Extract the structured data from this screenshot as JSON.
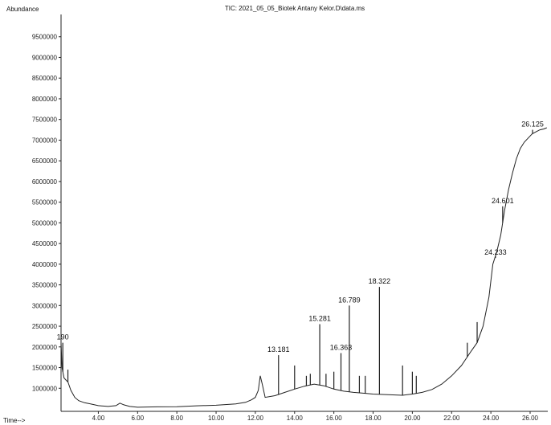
{
  "chart_data": {
    "type": "line",
    "title": "TIC: 2021_05_05_Biotek Antany Kelor.D\\data.ms",
    "ylabel": "Abundance",
    "xlabel": "Time-->",
    "xlim": [
      2.1,
      26.9
    ],
    "ylim": [
      500000,
      10000000
    ],
    "xticks": [
      "4.00",
      "6.00",
      "8.00",
      "10.00",
      "12.00",
      "14.00",
      "16.00",
      "18.00",
      "20.00",
      "22.00",
      "24.00",
      "26.00"
    ],
    "yticks": [
      "1000000",
      "1500000",
      "2000000",
      "2500000",
      "3000000",
      "3500000",
      "4000000",
      "4500000",
      "5000000",
      "5500000",
      "6000000",
      "6500000",
      "7000000",
      "7500000",
      "8000000",
      "8500000",
      "9000000",
      "9500000"
    ],
    "grid": false,
    "baseline": [
      [
        2.1,
        2100000
      ],
      [
        2.15,
        1500000
      ],
      [
        2.25,
        1250000
      ],
      [
        2.35,
        1200000
      ],
      [
        2.45,
        1150000
      ],
      [
        2.6,
        950000
      ],
      [
        2.8,
        780000
      ],
      [
        3.0,
        700000
      ],
      [
        3.3,
        650000
      ],
      [
        3.6,
        620000
      ],
      [
        4.0,
        580000
      ],
      [
        4.5,
        560000
      ],
      [
        4.9,
        580000
      ],
      [
        5.1,
        640000
      ],
      [
        5.3,
        600000
      ],
      [
        5.6,
        560000
      ],
      [
        6.0,
        540000
      ],
      [
        7.0,
        550000
      ],
      [
        8.0,
        555000
      ],
      [
        9.0,
        575000
      ],
      [
        10.0,
        590000
      ],
      [
        11.0,
        620000
      ],
      [
        11.5,
        660000
      ],
      [
        11.8,
        720000
      ],
      [
        12.0,
        780000
      ],
      [
        12.15,
        950000
      ],
      [
        12.25,
        1300000
      ],
      [
        12.35,
        1100000
      ],
      [
        12.5,
        780000
      ],
      [
        13.0,
        820000
      ],
      [
        13.5,
        900000
      ],
      [
        14.0,
        980000
      ],
      [
        14.5,
        1050000
      ],
      [
        15.0,
        1100000
      ],
      [
        15.5,
        1060000
      ],
      [
        16.0,
        980000
      ],
      [
        16.5,
        930000
      ],
      [
        17.0,
        900000
      ],
      [
        17.5,
        880000
      ],
      [
        18.0,
        860000
      ],
      [
        18.5,
        850000
      ],
      [
        19.0,
        840000
      ],
      [
        19.5,
        830000
      ],
      [
        20.0,
        860000
      ],
      [
        20.5,
        900000
      ],
      [
        21.0,
        970000
      ],
      [
        21.5,
        1100000
      ],
      [
        22.0,
        1300000
      ],
      [
        22.5,
        1550000
      ],
      [
        23.0,
        1900000
      ],
      [
        23.3,
        2100000
      ],
      [
        23.6,
        2500000
      ],
      [
        23.9,
        3200000
      ],
      [
        24.1,
        4000000
      ],
      [
        24.3,
        4300000
      ],
      [
        24.5,
        4700000
      ],
      [
        24.7,
        5300000
      ],
      [
        24.9,
        5800000
      ],
      [
        25.1,
        6200000
      ],
      [
        25.3,
        6550000
      ],
      [
        25.5,
        6800000
      ],
      [
        25.7,
        6950000
      ],
      [
        25.9,
        7050000
      ],
      [
        26.1,
        7150000
      ],
      [
        26.3,
        7200000
      ],
      [
        26.5,
        7250000
      ],
      [
        26.7,
        7270000
      ],
      [
        26.85,
        7300000
      ]
    ],
    "peaks": [
      {
        "rt": 2.19,
        "height": 2100000,
        "label": "190"
      },
      {
        "rt": 2.45,
        "height": 1450000,
        "label": ""
      },
      {
        "rt": 13.181,
        "height": 1800000,
        "label": "13.181"
      },
      {
        "rt": 14.0,
        "height": 1550000,
        "label": ""
      },
      {
        "rt": 14.6,
        "height": 1300000,
        "label": ""
      },
      {
        "rt": 14.8,
        "height": 1350000,
        "label": ""
      },
      {
        "rt": 15.281,
        "height": 2550000,
        "label": "15.281"
      },
      {
        "rt": 15.6,
        "height": 1350000,
        "label": ""
      },
      {
        "rt": 16.0,
        "height": 1400000,
        "label": ""
      },
      {
        "rt": 16.363,
        "height": 1850000,
        "label": "16.363"
      },
      {
        "rt": 16.789,
        "height": 3000000,
        "label": "16.789"
      },
      {
        "rt": 17.3,
        "height": 1300000,
        "label": ""
      },
      {
        "rt": 17.6,
        "height": 1300000,
        "label": ""
      },
      {
        "rt": 18.322,
        "height": 3450000,
        "label": "18.322"
      },
      {
        "rt": 19.5,
        "height": 1550000,
        "label": ""
      },
      {
        "rt": 20.0,
        "height": 1400000,
        "label": ""
      },
      {
        "rt": 20.2,
        "height": 1300000,
        "label": ""
      },
      {
        "rt": 22.8,
        "height": 2100000,
        "label": ""
      },
      {
        "rt": 23.3,
        "height": 2600000,
        "label": ""
      },
      {
        "rt": 24.233,
        "height": 4150000,
        "label": "24.233"
      },
      {
        "rt": 24.601,
        "height": 5400000,
        "label": "24.601"
      },
      {
        "rt": 26.125,
        "height": 7250000,
        "label": "26.125"
      }
    ]
  }
}
